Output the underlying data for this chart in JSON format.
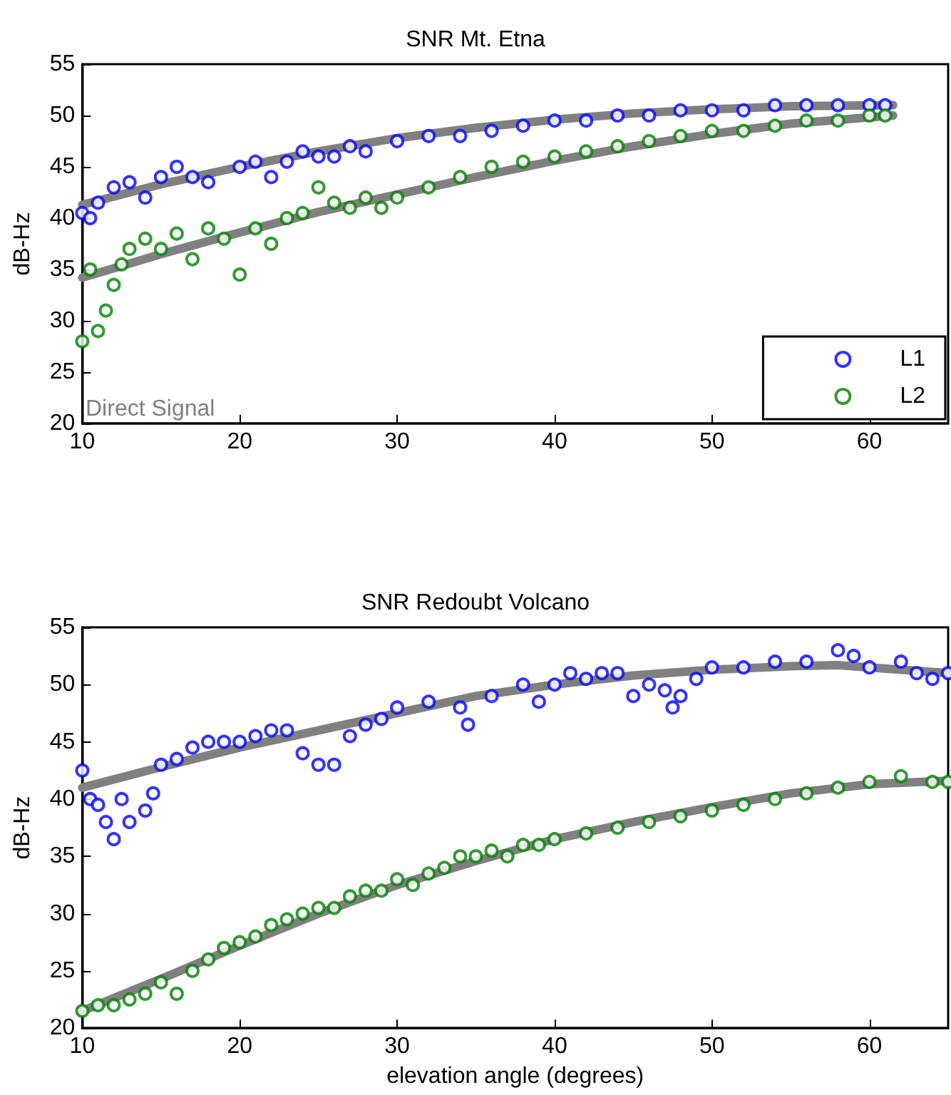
{
  "chart_data": [
    {
      "type": "scatter",
      "title": "SNR Mt. Etna",
      "ylabel": "dB-Hz",
      "xlim": [
        10,
        65
      ],
      "xticks": [
        10,
        20,
        30,
        40,
        50,
        60
      ],
      "ylim": [
        20,
        55
      ],
      "yticks": [
        20,
        25,
        30,
        35,
        40,
        45,
        50,
        55
      ],
      "grid": false,
      "legend": "bottom right",
      "marker": "circle",
      "annotations": [
        "Direct Signal"
      ],
      "series": [
        {
          "name": "L1",
          "color": "#0000ff",
          "x": [
            10,
            10.5,
            11,
            12,
            13,
            14,
            15,
            16,
            17,
            18,
            20,
            21,
            22,
            23,
            24,
            25,
            26,
            27,
            28,
            30,
            32,
            34,
            36,
            38,
            40,
            42,
            44,
            46,
            48,
            50,
            52,
            54,
            56,
            58,
            60,
            61
          ],
          "values": [
            40.5,
            40,
            41.5,
            43,
            43.5,
            42,
            44,
            45,
            44,
            43.5,
            45,
            45.5,
            44,
            45.5,
            46.5,
            46,
            46,
            47,
            46.5,
            47.5,
            48,
            48,
            48.5,
            49,
            49.5,
            49.5,
            50,
            50,
            50.5,
            50.5,
            50.5,
            51,
            51,
            51,
            51,
            51
          ]
        },
        {
          "name": "L2",
          "color": "#008000",
          "x": [
            10,
            10.5,
            11,
            11.5,
            12,
            12.5,
            13,
            14,
            15,
            16,
            17,
            18,
            19,
            20,
            21,
            22,
            23,
            24,
            25,
            26,
            27,
            28,
            29,
            30,
            32,
            34,
            36,
            38,
            40,
            42,
            44,
            46,
            48,
            50,
            52,
            54,
            56,
            58,
            60,
            61
          ],
          "values": [
            28,
            35,
            29,
            31,
            33.5,
            35.5,
            37,
            38,
            37,
            38.5,
            36,
            39,
            38,
            34.5,
            39,
            37.5,
            40,
            40.5,
            43,
            41.5,
            41,
            42,
            41,
            42,
            43,
            44,
            45,
            45.5,
            46,
            46.5,
            47,
            47.5,
            48,
            48.5,
            48.5,
            49,
            49.5,
            49.5,
            50,
            50
          ]
        },
        {
          "type": "line",
          "color": "#808080",
          "marker": "none",
          "x": [
            10,
            15,
            20,
            25,
            30,
            35,
            40,
            45,
            50,
            55,
            61.5
          ],
          "values": [
            41.3,
            43.3,
            45,
            46.5,
            47.8,
            48.8,
            49.6,
            50.2,
            50.6,
            50.9,
            51
          ]
        },
        {
          "type": "line",
          "color": "#808080",
          "marker": "none",
          "x": [
            10,
            15,
            20,
            25,
            30,
            35,
            40,
            45,
            50,
            55,
            61.5
          ],
          "values": [
            34.2,
            36.5,
            38.6,
            40.6,
            42.3,
            44,
            45.6,
            47,
            48.2,
            49.2,
            50
          ]
        }
      ]
    },
    {
      "type": "scatter",
      "title": "SNR Redoubt Volcano",
      "xlabel": "elevation angle (degrees)",
      "ylabel": "dB-Hz",
      "xlim": [
        10,
        65
      ],
      "xticks": [
        10,
        20,
        30,
        40,
        50,
        60
      ],
      "ylim": [
        20,
        55
      ],
      "yticks": [
        20,
        25,
        30,
        35,
        40,
        45,
        50,
        55
      ],
      "grid": false,
      "marker": "circle",
      "series": [
        {
          "color": "#0000ff",
          "x": [
            10,
            10.5,
            11,
            11.5,
            12,
            12.5,
            13,
            14,
            14.5,
            15,
            16,
            17,
            18,
            19,
            20,
            21,
            22,
            23,
            24,
            25,
            26,
            27,
            28,
            29,
            30,
            32,
            34,
            34.5,
            36,
            38,
            39,
            40,
            41,
            42,
            43,
            44,
            45,
            46,
            47,
            47.5,
            48,
            49,
            50,
            52,
            54,
            56,
            58,
            59,
            60,
            62,
            63,
            64,
            65
          ],
          "values": [
            42.5,
            40,
            39.5,
            38,
            36.5,
            40,
            38,
            39,
            40.5,
            43,
            43.5,
            44.5,
            45,
            45,
            45,
            45.5,
            46,
            46,
            44,
            43,
            43,
            45.5,
            46.5,
            47,
            48,
            48.5,
            48,
            46.5,
            49,
            50,
            48.5,
            50,
            51,
            50.5,
            51,
            51,
            49,
            50,
            49.5,
            48,
            49,
            50.5,
            51.5,
            51.5,
            52,
            52,
            53,
            52.5,
            51.5,
            52,
            51,
            50.5,
            51
          ]
        },
        {
          "color": "#008000",
          "x": [
            10,
            11,
            12,
            13,
            14,
            15,
            16,
            17,
            18,
            19,
            20,
            21,
            22,
            23,
            24,
            25,
            26,
            27,
            28,
            29,
            30,
            31,
            32,
            33,
            34,
            35,
            36,
            37,
            38,
            39,
            40,
            42,
            44,
            46,
            48,
            50,
            52,
            54,
            56,
            58,
            60,
            62,
            64,
            65
          ],
          "values": [
            21.5,
            22,
            22,
            22.5,
            23,
            24,
            23,
            25,
            26,
            27,
            27.5,
            28,
            29,
            29.5,
            30,
            30.5,
            30.5,
            31.5,
            32,
            32,
            33,
            32.5,
            33.5,
            34,
            35,
            35,
            35.5,
            35,
            36,
            36,
            36.5,
            37,
            37.5,
            38,
            38.5,
            39,
            39.5,
            40,
            40.5,
            41,
            41.5,
            42,
            41.5,
            41.5
          ]
        },
        {
          "type": "line",
          "color": "#808080",
          "marker": "none",
          "x": [
            10,
            15,
            20,
            25,
            30,
            35,
            40,
            45,
            50,
            55,
            58,
            62,
            65
          ],
          "values": [
            41,
            42.8,
            44.5,
            46,
            47.5,
            49,
            50,
            50.8,
            51.3,
            51.6,
            51.7,
            51.3,
            51
          ]
        },
        {
          "type": "line",
          "color": "#808080",
          "marker": "none",
          "x": [
            10,
            15,
            20,
            25,
            30,
            35,
            40,
            45,
            50,
            55,
            60,
            65
          ],
          "values": [
            21.5,
            24.3,
            27.2,
            30,
            32.5,
            34.6,
            36.5,
            38,
            39.3,
            40.5,
            41.3,
            41.6
          ]
        }
      ]
    }
  ]
}
